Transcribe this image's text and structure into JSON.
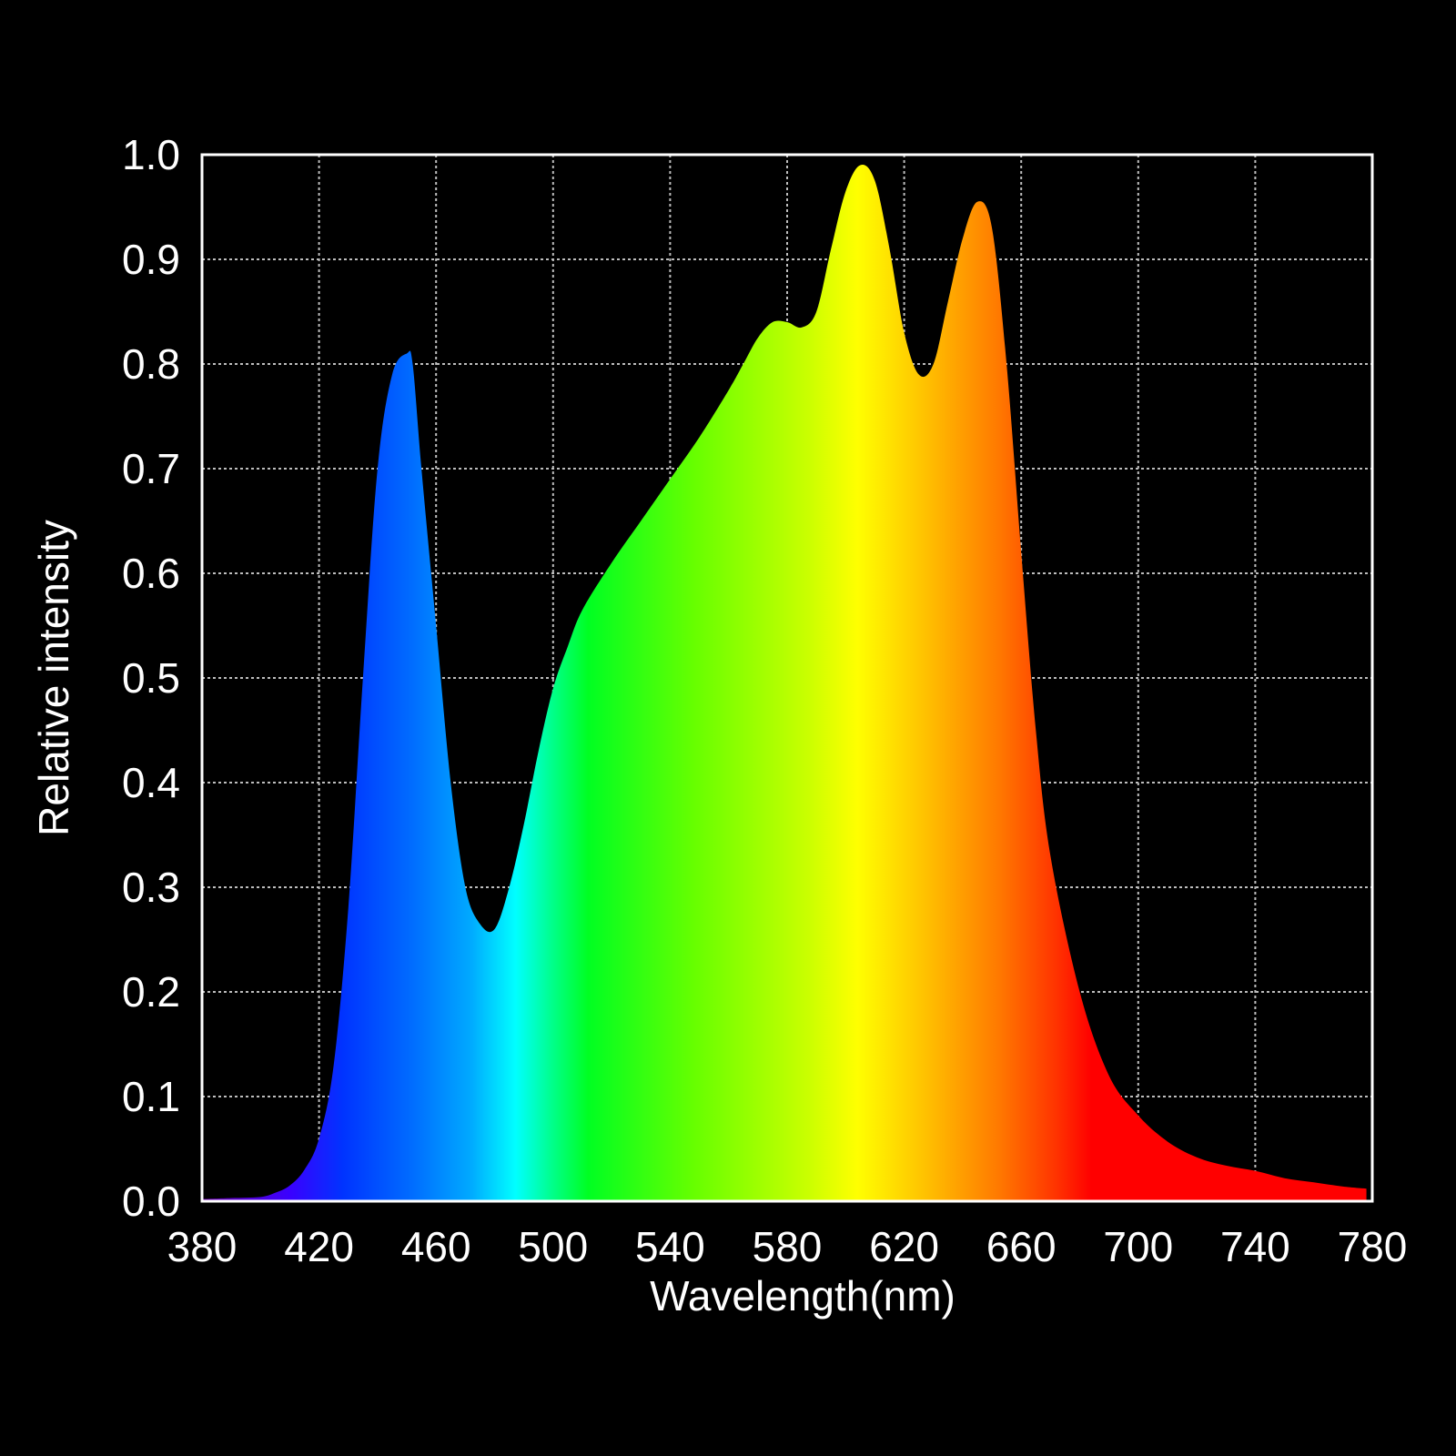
{
  "chart_data": {
    "type": "area",
    "xlabel": "Wavelength(nm)",
    "ylabel": "Relative intensity",
    "xlim": [
      380,
      780
    ],
    "ylim": [
      0.0,
      1.0
    ],
    "x_ticks": [
      "380",
      "420",
      "460",
      "500",
      "540",
      "580",
      "620",
      "660",
      "700",
      "740",
      "780"
    ],
    "y_ticks": [
      "0.0",
      "0.1",
      "0.2",
      "0.3",
      "0.4",
      "0.5",
      "0.6",
      "0.7",
      "0.8",
      "0.9",
      "1.0"
    ],
    "grid": true,
    "fill": "spectral gradient",
    "series": [
      {
        "x": [
          380,
          390,
          400,
          405,
          410,
          415,
          420,
          425,
          430,
          435,
          440,
          445,
          450,
          452,
          455,
          460,
          465,
          470,
          475,
          480,
          485,
          490,
          495,
          500,
          505,
          510,
          520,
          530,
          540,
          550,
          560,
          565,
          570,
          575,
          580,
          585,
          590,
          595,
          600,
          605,
          610,
          615,
          620,
          625,
          630,
          635,
          640,
          645,
          650,
          655,
          660,
          665,
          670,
          680,
          690,
          700,
          710,
          720,
          730,
          740,
          750,
          760,
          770,
          778
        ],
        "y": [
          0.002,
          0.003,
          0.004,
          0.008,
          0.015,
          0.03,
          0.06,
          0.13,
          0.28,
          0.5,
          0.7,
          0.79,
          0.81,
          0.8,
          0.7,
          0.55,
          0.4,
          0.3,
          0.265,
          0.26,
          0.3,
          0.36,
          0.43,
          0.49,
          0.53,
          0.565,
          0.61,
          0.65,
          0.69,
          0.73,
          0.775,
          0.8,
          0.825,
          0.84,
          0.84,
          0.835,
          0.85,
          0.91,
          0.965,
          0.99,
          0.975,
          0.91,
          0.83,
          0.79,
          0.8,
          0.86,
          0.92,
          0.955,
          0.93,
          0.8,
          0.62,
          0.45,
          0.33,
          0.2,
          0.12,
          0.082,
          0.057,
          0.042,
          0.034,
          0.029,
          0.022,
          0.018,
          0.014,
          0.012
        ]
      }
    ]
  }
}
